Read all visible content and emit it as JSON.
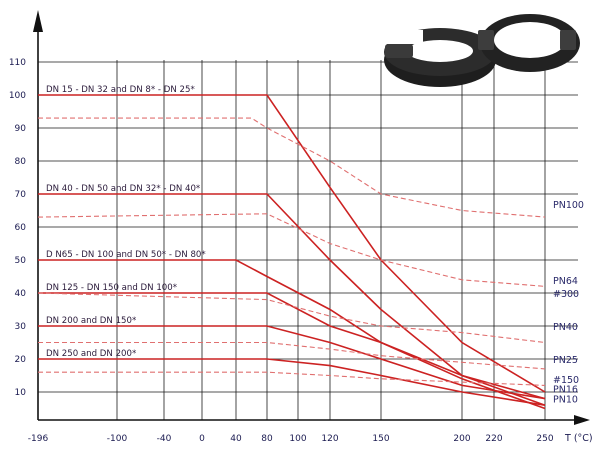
{
  "chart_data": {
    "type": "line",
    "title": "",
    "xlabel": "T (°C)",
    "ylabel": "",
    "x_ticks": [
      -196,
      -100,
      -40,
      0,
      40,
      80,
      100,
      120,
      150,
      200,
      220,
      250
    ],
    "y_ticks": [
      10,
      20,
      30,
      40,
      50,
      60,
      70,
      80,
      90,
      100,
      110
    ],
    "x_tick_labels": [
      "-196",
      "-100",
      "-40",
      "0",
      "40",
      "80",
      "100",
      "120",
      "150",
      "200",
      "220",
      "250"
    ],
    "y_tick_labels": [
      "10",
      "20",
      "30",
      "40",
      "50",
      "60",
      "70",
      "80",
      "90",
      "100",
      "110"
    ],
    "ylim": [
      0,
      115
    ],
    "grid": true,
    "series": [
      {
        "name": "DN 15 - DN 32 and DN 8* - DN 25*",
        "style": "solid",
        "x": [
          -196,
          40,
          80,
          120,
          150,
          200,
          250
        ],
        "y": [
          100,
          100,
          100,
          72,
          50,
          25,
          10
        ]
      },
      {
        "name": "",
        "style": "dashed",
        "x": [
          -196,
          60,
          80,
          120,
          150,
          200,
          250
        ],
        "y": [
          93,
          93,
          90,
          80,
          70,
          65,
          63
        ]
      },
      {
        "name": "DN 40 - DN 50 and DN 32* - DN 40*",
        "style": "solid",
        "x": [
          -196,
          80,
          120,
          150,
          200,
          250
        ],
        "y": [
          70,
          70,
          50,
          35,
          15,
          6
        ]
      },
      {
        "name": "",
        "style": "dashed",
        "x": [
          -196,
          80,
          120,
          150,
          200,
          250
        ],
        "y": [
          63,
          64,
          55,
          50,
          44,
          42
        ]
      },
      {
        "name": "D N65 - DN 100 and DN 50* - DN 80*",
        "style": "solid",
        "x": [
          -196,
          40,
          80,
          120,
          150,
          200,
          250
        ],
        "y": [
          50,
          50,
          45,
          35,
          25,
          14,
          5
        ]
      },
      {
        "name": "DN 125 - DN 150 and DN 100*",
        "style": "solid",
        "x": [
          -196,
          80,
          120,
          150,
          200,
          250
        ],
        "y": [
          40,
          40,
          30,
          25,
          15,
          8
        ]
      },
      {
        "name": "",
        "style": "dashed",
        "x": [
          -196,
          80,
          120,
          150,
          200,
          250
        ],
        "y": [
          40,
          38,
          33,
          30,
          28,
          25
        ]
      },
      {
        "name": "DN 200 and DN 150*",
        "style": "solid",
        "x": [
          -196,
          80,
          120,
          150,
          200,
          250
        ],
        "y": [
          30,
          30,
          25,
          20,
          12,
          8
        ]
      },
      {
        "name": "",
        "style": "dashed",
        "x": [
          -196,
          80,
          120,
          150,
          200,
          250
        ],
        "y": [
          25,
          25,
          23,
          21,
          19,
          17
        ]
      },
      {
        "name": "DN 250 and DN 200*",
        "style": "solid",
        "x": [
          -196,
          80,
          120,
          150,
          200,
          250
        ],
        "y": [
          20,
          20,
          18,
          15,
          10,
          6
        ]
      },
      {
        "name": "",
        "style": "dashed",
        "x": [
          -196,
          80,
          120,
          150,
          200,
          250
        ],
        "y": [
          16,
          16,
          15,
          14,
          13,
          12
        ]
      }
    ],
    "right_labels": [
      {
        "text": "PN100",
        "y": 67
      },
      {
        "text": "PN64",
        "y": 44
      },
      {
        "text": "#300",
        "y": 40
      },
      {
        "text": "PN40",
        "y": 30
      },
      {
        "text": "PN25",
        "y": 20
      },
      {
        "text": "#150",
        "y": 14
      },
      {
        "text": "PN16",
        "y": 11
      },
      {
        "text": "PN10",
        "y": 8
      }
    ]
  }
}
